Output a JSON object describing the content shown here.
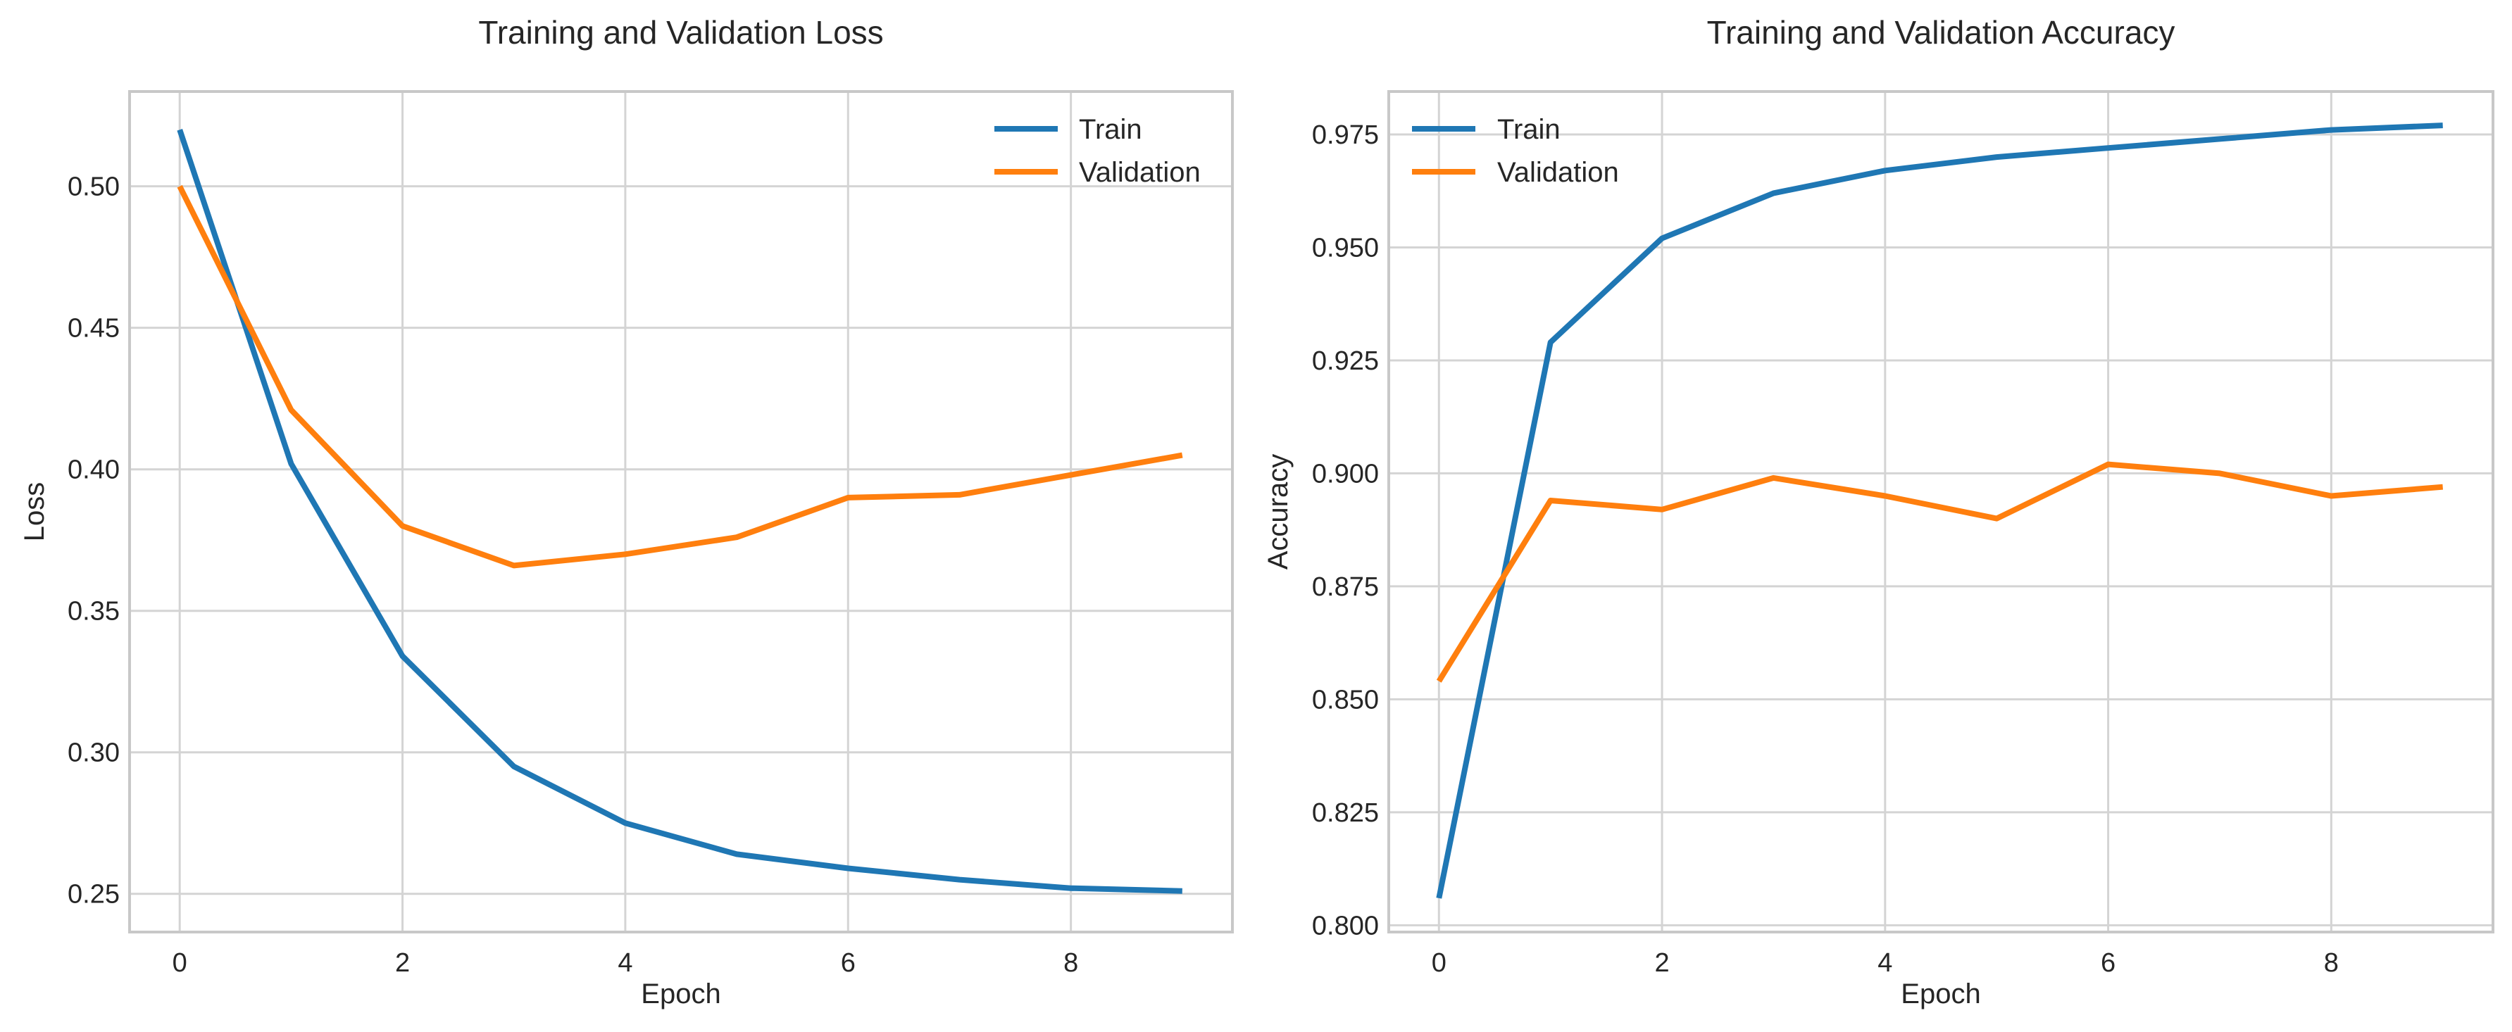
{
  "chart_data": [
    {
      "type": "line",
      "title": "Training and Validation Loss",
      "xlabel": "Epoch",
      "ylabel": "Loss",
      "xlim": [
        -0.45,
        9.45
      ],
      "ylim": [
        0.2365,
        0.5335
      ],
      "xticks": [
        0,
        2,
        4,
        6,
        8
      ],
      "xtick_labels": [
        "0",
        "2",
        "4",
        "6",
        "8"
      ],
      "yticks": [
        0.25,
        0.3,
        0.35,
        0.4,
        0.45,
        0.5
      ],
      "ytick_labels": [
        "0.25",
        "0.30",
        "0.35",
        "0.40",
        "0.45",
        "0.50"
      ],
      "grid": true,
      "legend_position": "top-right",
      "x": [
        0,
        1,
        2,
        3,
        4,
        5,
        6,
        7,
        8,
        9
      ],
      "series": [
        {
          "name": "Train",
          "color": "#1f77b4",
          "values": [
            0.52,
            0.402,
            0.334,
            0.295,
            0.275,
            0.264,
            0.259,
            0.255,
            0.252,
            0.251
          ]
        },
        {
          "name": "Validation",
          "color": "#ff7f0e",
          "values": [
            0.5,
            0.421,
            0.38,
            0.366,
            0.37,
            0.376,
            0.39,
            0.391,
            0.398,
            0.405
          ]
        }
      ]
    },
    {
      "type": "line",
      "title": "Training and Validation Accuracy",
      "xlabel": "Epoch",
      "ylabel": "Accuracy",
      "xlim": [
        -0.45,
        9.45
      ],
      "ylim": [
        0.7985,
        0.9845
      ],
      "xticks": [
        0,
        2,
        4,
        6,
        8
      ],
      "xtick_labels": [
        "0",
        "2",
        "4",
        "6",
        "8"
      ],
      "yticks": [
        0.8,
        0.825,
        0.85,
        0.875,
        0.9,
        0.925,
        0.95,
        0.975
      ],
      "ytick_labels": [
        "0.800",
        "0.825",
        "0.850",
        "0.875",
        "0.900",
        "0.925",
        "0.950",
        "0.975"
      ],
      "grid": true,
      "legend_position": "top-left",
      "x": [
        0,
        1,
        2,
        3,
        4,
        5,
        6,
        7,
        8,
        9
      ],
      "series": [
        {
          "name": "Train",
          "color": "#1f77b4",
          "values": [
            0.806,
            0.929,
            0.952,
            0.962,
            0.967,
            0.97,
            0.972,
            0.974,
            0.976,
            0.977
          ]
        },
        {
          "name": "Validation",
          "color": "#ff7f0e",
          "values": [
            0.854,
            0.894,
            0.892,
            0.899,
            0.895,
            0.89,
            0.902,
            0.9,
            0.895,
            0.897
          ]
        }
      ]
    }
  ]
}
